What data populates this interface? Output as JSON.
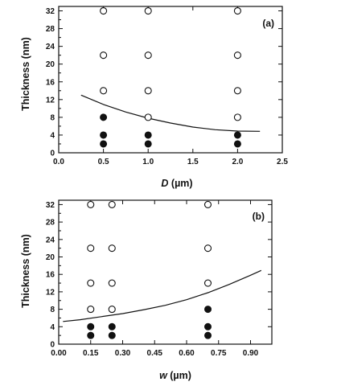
{
  "chart_data": [
    {
      "type": "scatter",
      "panel_label": "(a)",
      "xlabel_var": "D",
      "xlabel_unit": " (µm)",
      "ylabel": "Thickness (nm)",
      "xlim": [
        0.0,
        2.5
      ],
      "ylim": [
        0,
        33
      ],
      "xticks": [
        "0.0",
        "0.5",
        "1.0",
        "1.5",
        "2.0",
        "2.5"
      ],
      "yticks": [
        "0",
        "4",
        "8",
        "12",
        "16",
        "20",
        "24",
        "28",
        "32"
      ],
      "grid": false,
      "open_points": [
        {
          "x": 0.5,
          "y": 32
        },
        {
          "x": 1.0,
          "y": 32
        },
        {
          "x": 2.0,
          "y": 32
        },
        {
          "x": 0.5,
          "y": 22
        },
        {
          "x": 1.0,
          "y": 22
        },
        {
          "x": 2.0,
          "y": 22
        },
        {
          "x": 0.5,
          "y": 14
        },
        {
          "x": 1.0,
          "y": 14
        },
        {
          "x": 2.0,
          "y": 14
        },
        {
          "x": 1.0,
          "y": 8
        },
        {
          "x": 2.0,
          "y": 8
        }
      ],
      "filled_points": [
        {
          "x": 0.5,
          "y": 8
        },
        {
          "x": 0.5,
          "y": 4
        },
        {
          "x": 1.0,
          "y": 4
        },
        {
          "x": 2.0,
          "y": 4
        },
        {
          "x": 0.5,
          "y": 2
        },
        {
          "x": 1.0,
          "y": 2
        },
        {
          "x": 2.0,
          "y": 2
        }
      ],
      "curve": [
        {
          "x": 0.25,
          "y": 13.0
        },
        {
          "x": 0.5,
          "y": 10.9
        },
        {
          "x": 0.75,
          "y": 9.2
        },
        {
          "x": 1.0,
          "y": 7.8
        },
        {
          "x": 1.25,
          "y": 6.7
        },
        {
          "x": 1.5,
          "y": 5.8
        },
        {
          "x": 1.75,
          "y": 5.2
        },
        {
          "x": 2.0,
          "y": 4.9
        },
        {
          "x": 2.25,
          "y": 4.85
        }
      ]
    },
    {
      "type": "scatter",
      "panel_label": "(b)",
      "xlabel_var": "w",
      "xlabel_unit": " (µm)",
      "ylabel": "Thickness (nm)",
      "xlim": [
        0.0,
        1.0
      ],
      "ylim": [
        0,
        33
      ],
      "xticks": [
        "0.00",
        "0.15",
        "0.30",
        "0.45",
        "0.60",
        "0.75",
        "0.90"
      ],
      "yticks": [
        "0",
        "4",
        "8",
        "12",
        "16",
        "20",
        "24",
        "28",
        "32"
      ],
      "grid": false,
      "open_points": [
        {
          "x": 0.15,
          "y": 32
        },
        {
          "x": 0.25,
          "y": 32
        },
        {
          "x": 0.7,
          "y": 32
        },
        {
          "x": 0.15,
          "y": 22
        },
        {
          "x": 0.25,
          "y": 22
        },
        {
          "x": 0.7,
          "y": 22
        },
        {
          "x": 0.15,
          "y": 14
        },
        {
          "x": 0.25,
          "y": 14
        },
        {
          "x": 0.7,
          "y": 14
        },
        {
          "x": 0.15,
          "y": 8
        },
        {
          "x": 0.25,
          "y": 8
        }
      ],
      "filled_points": [
        {
          "x": 0.7,
          "y": 8
        },
        {
          "x": 0.15,
          "y": 4
        },
        {
          "x": 0.25,
          "y": 4
        },
        {
          "x": 0.7,
          "y": 4
        },
        {
          "x": 0.15,
          "y": 2
        },
        {
          "x": 0.25,
          "y": 2
        },
        {
          "x": 0.7,
          "y": 2
        }
      ],
      "curve": [
        {
          "x": 0.02,
          "y": 5.2
        },
        {
          "x": 0.1,
          "y": 5.6
        },
        {
          "x": 0.2,
          "y": 6.3
        },
        {
          "x": 0.3,
          "y": 7.0
        },
        {
          "x": 0.4,
          "y": 7.9
        },
        {
          "x": 0.5,
          "y": 8.9
        },
        {
          "x": 0.6,
          "y": 10.2
        },
        {
          "x": 0.7,
          "y": 11.8
        },
        {
          "x": 0.8,
          "y": 13.7
        },
        {
          "x": 0.9,
          "y": 15.8
        },
        {
          "x": 0.95,
          "y": 16.9
        }
      ]
    }
  ]
}
